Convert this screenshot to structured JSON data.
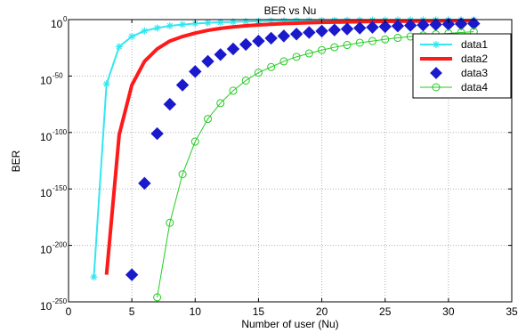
{
  "chart_data": {
    "type": "line",
    "title": "BER vs Nu",
    "xlabel": "Number of user (Nu)",
    "ylabel": "BER",
    "xlim": [
      0,
      35
    ],
    "ylim_log10": [
      -250,
      0
    ],
    "y_scale": "log",
    "grid": true,
    "legend_position": "top-right",
    "x_ticks": [
      "0",
      "5",
      "10",
      "15",
      "20",
      "25",
      "30",
      "35"
    ],
    "y_ticks": [
      {
        "base": "10",
        "exp": "0",
        "log10": 0
      },
      {
        "base": "10",
        "exp": "-50",
        "log10": -50
      },
      {
        "base": "10",
        "exp": "-100",
        "log10": -100
      },
      {
        "base": "10",
        "exp": "-150",
        "log10": -150
      },
      {
        "base": "10",
        "exp": "-200",
        "log10": -200
      },
      {
        "base": "10",
        "exp": "-250",
        "log10": -250
      }
    ],
    "series": [
      {
        "name": "data1",
        "color": "#33e6f0",
        "marker": "star",
        "line_width": 2,
        "x_start": 2,
        "log10_values": [
          -228,
          -57,
          -24,
          -15,
          -10,
          -7.5,
          -5.5,
          -4.4,
          -3.5,
          -2.9,
          -2.4,
          -2.0,
          -1.7,
          -1.5,
          -1.3,
          -1.1,
          -1.0,
          -0.9,
          -0.8,
          -0.7,
          -0.6,
          -0.55,
          -0.5,
          -0.45,
          -0.4,
          -0.37,
          -0.34,
          -0.31,
          -0.28,
          -0.26,
          -0.24
        ]
      },
      {
        "name": "data2",
        "color": "#ff1a1a",
        "marker": "none",
        "line_width": 4,
        "x_start": 3,
        "log10_values": [
          -226,
          -102,
          -58,
          -37,
          -26,
          -19,
          -15,
          -12,
          -9.5,
          -7.8,
          -6.5,
          -5.5,
          -4.7,
          -4.1,
          -3.6,
          -3.2,
          -2.8,
          -2.5,
          -2.3,
          -2.1,
          -1.9,
          -1.7,
          -1.6,
          -1.5,
          -1.4,
          -1.3,
          -1.2,
          -1.1,
          -1.05,
          -1.0
        ]
      },
      {
        "name": "data3",
        "color": "#1a1acc",
        "marker": "diamond",
        "line_width": 0,
        "x_start": 5,
        "log10_values": [
          -226,
          -145,
          -101,
          -75,
          -58,
          -46,
          -37,
          -31,
          -26,
          -22,
          -19,
          -16.5,
          -14.5,
          -12.8,
          -11.4,
          -10.2,
          -9.2,
          -8.3,
          -7.5,
          -6.8,
          -6.2,
          -5.7,
          -5.2,
          -4.8,
          -4.4,
          -4.1,
          -3.8,
          -3.5
        ]
      },
      {
        "name": "data4",
        "color": "#22cc22",
        "marker": "circle",
        "line_width": 1,
        "x_start": 7,
        "log10_values": [
          -246,
          -180,
          -137,
          -108,
          -88,
          -74,
          -63,
          -54,
          -47,
          -42,
          -37,
          -33,
          -30,
          -27,
          -24.5,
          -22.5,
          -20.5,
          -19,
          -17.5,
          -16.2,
          -15,
          -14,
          -13,
          -12.2,
          -11.4,
          -10.7
        ]
      }
    ]
  }
}
